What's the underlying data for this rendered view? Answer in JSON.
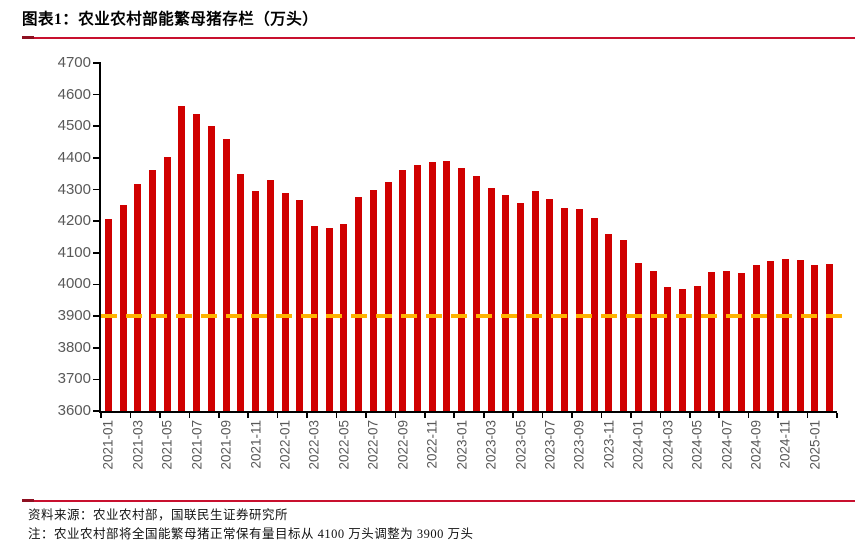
{
  "header": {
    "title": "图表1：农业农村部能繁母猪存栏（万头）"
  },
  "footer": {
    "source": "资料来源：农业农村部，国联民生证券研究所",
    "note": "注：农业农村部将全国能繁母猪正常保有量目标从 4100 万头调整为 3900 万头"
  },
  "colors": {
    "bar": "#D00000",
    "reference_line": "#FFB300",
    "rule": "#C8102E",
    "rule_accent": "#8E1021",
    "axis": "#000000",
    "tick_label": "#595959"
  },
  "chart_data": {
    "type": "bar",
    "title": "农业农村部能繁母猪存栏（万头）",
    "x": [
      "2021-01",
      "2021-02",
      "2021-03",
      "2021-04",
      "2021-05",
      "2021-06",
      "2021-07",
      "2021-08",
      "2021-09",
      "2021-10",
      "2021-11",
      "2021-12",
      "2022-01",
      "2022-02",
      "2022-03",
      "2022-04",
      "2022-05",
      "2022-06",
      "2022-07",
      "2022-08",
      "2022-09",
      "2022-10",
      "2022-11",
      "2022-12",
      "2023-01",
      "2023-02",
      "2023-03",
      "2023-04",
      "2023-05",
      "2023-06",
      "2023-07",
      "2023-08",
      "2023-09",
      "2023-10",
      "2023-11",
      "2023-12",
      "2024-01",
      "2024-02",
      "2024-03",
      "2024-04",
      "2024-05",
      "2024-06",
      "2024-07",
      "2024-08",
      "2024-09",
      "2024-10",
      "2024-11",
      "2024-12",
      "2025-01",
      "2025-02"
    ],
    "values": [
      4207,
      4250,
      4318,
      4361,
      4404,
      4564,
      4540,
      4501,
      4459,
      4348,
      4296,
      4329,
      4290,
      4268,
      4185,
      4177,
      4192,
      4277,
      4298,
      4324,
      4362,
      4379,
      4388,
      4390,
      4367,
      4343,
      4305,
      4284,
      4258,
      4296,
      4271,
      4241,
      4240,
      4210,
      4158,
      4142,
      4067,
      4042,
      3992,
      3986,
      3996,
      4038,
      4041,
      4036,
      4062,
      4073,
      4080,
      4078,
      4062,
      4066
    ],
    "ylim": [
      3600,
      4700
    ],
    "yticks": [
      3600,
      3700,
      3800,
      3900,
      4000,
      4100,
      4200,
      4300,
      4400,
      4500,
      4600,
      4700
    ],
    "xtick_interval": 2,
    "grid": false,
    "legend": "none",
    "reference_line": {
      "value": 3900,
      "style": "dashed",
      "color": "#FFB300"
    }
  }
}
